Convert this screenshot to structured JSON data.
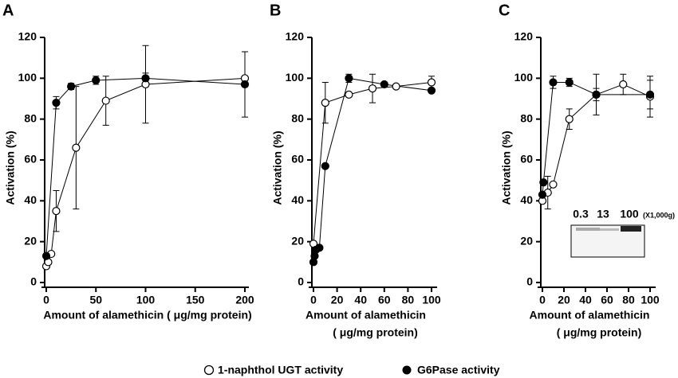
{
  "chart_data": [
    {
      "type": "line",
      "panel": "A",
      "xlabel": [
        "Amount of alamethicin ( μg/mg protein)"
      ],
      "ylabel": "Activation (%)",
      "xlim": [
        0,
        200
      ],
      "ylim": [
        0,
        120
      ],
      "xticks": [
        0,
        50,
        100,
        150,
        200
      ],
      "yticks": [
        0,
        20,
        40,
        60,
        80,
        100,
        120
      ],
      "series": [
        {
          "name": "1-naphthol UGT activity",
          "marker": "open",
          "color": "#000000",
          "x": [
            0,
            2,
            5,
            10,
            30,
            60,
            100,
            200
          ],
          "values": [
            8,
            10,
            14,
            35,
            66,
            89,
            97,
            100
          ],
          "errors": [
            null,
            null,
            null,
            10,
            30,
            12,
            19,
            null
          ]
        },
        {
          "name": "G6Pase activity",
          "marker": "filled",
          "color": "#000000",
          "x": [
            0,
            10,
            25,
            50,
            100,
            200
          ],
          "values": [
            13,
            88,
            96,
            99,
            100,
            97
          ],
          "errors": [
            null,
            3,
            1.5,
            2,
            2.5,
            16
          ]
        }
      ]
    },
    {
      "type": "line",
      "panel": "B",
      "xlabel": [
        "Amount of alamethicin",
        "( μg/mg protein)"
      ],
      "ylabel": "Activation (%)",
      "xlim": [
        0,
        100
      ],
      "ylim": [
        0,
        120
      ],
      "xticks": [
        0,
        20,
        40,
        60,
        80,
        100
      ],
      "yticks": [
        0,
        20,
        40,
        60,
        80,
        100,
        120
      ],
      "series": [
        {
          "marker": "open",
          "color": "#000000",
          "x": [
            0,
            10,
            30,
            50,
            70,
            100
          ],
          "values": [
            19,
            88,
            92,
            95,
            96,
            98
          ],
          "errors": [
            null,
            10,
            null,
            7,
            null,
            3
          ]
        },
        {
          "marker": "filled",
          "color": "#000000",
          "x": [
            0,
            1,
            2,
            5,
            10,
            30,
            60,
            100
          ],
          "values": [
            10,
            13,
            16,
            17,
            57,
            100,
            97,
            94
          ],
          "errors": [
            null,
            null,
            null,
            null,
            null,
            2,
            null,
            null
          ]
        }
      ]
    },
    {
      "type": "line",
      "panel": "C",
      "xlabel": [
        "Amount of alamethicin",
        "( μg/mg protein)"
      ],
      "ylabel": "Activation (%)",
      "xlim": [
        0,
        100
      ],
      "ylim": [
        0,
        120
      ],
      "xticks": [
        0,
        20,
        40,
        60,
        80,
        100
      ],
      "yticks": [
        0,
        20,
        40,
        60,
        80,
        100,
        120
      ],
      "inset": {
        "labels": [
          "0.3",
          "13",
          "100"
        ],
        "unit": "(X1,000g)"
      },
      "series": [
        {
          "marker": "open",
          "color": "#000000",
          "x": [
            0,
            5,
            10,
            25,
            50,
            75,
            100
          ],
          "values": [
            40,
            44,
            48,
            80,
            92,
            97,
            91
          ],
          "errors": [
            null,
            8,
            null,
            5,
            10,
            5,
            10
          ]
        },
        {
          "marker": "filled",
          "color": "#000000",
          "x": [
            0,
            1,
            10,
            25,
            50,
            100
          ],
          "values": [
            43,
            49,
            98,
            98,
            92,
            92
          ],
          "errors": [
            null,
            null,
            3,
            2,
            3,
            7
          ]
        }
      ]
    }
  ]
}
